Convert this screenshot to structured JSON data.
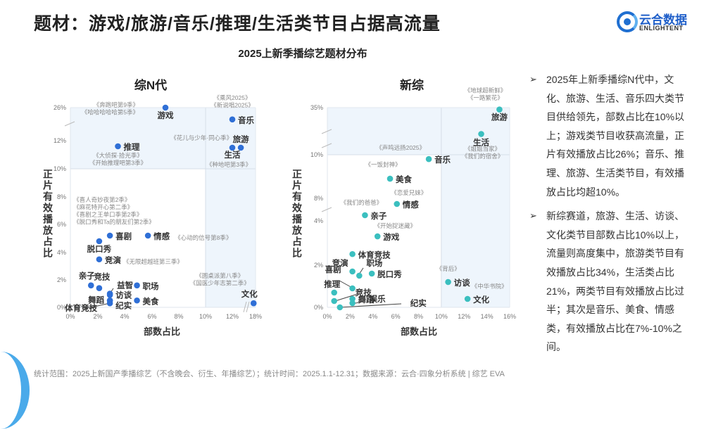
{
  "header": {
    "title": "题材：游戏/旅游/音乐/推理/生活类节目占据高流量"
  },
  "logo": {
    "cn": "云合数据",
    "en": "ENLIGHTENT"
  },
  "subtitle": "2025上新季播综艺题材分布",
  "panel": {
    "bullets": [
      "2025年上新季播综N代中，文化、旅游、生活、音乐四大类节目供给领先，部数占比在10%以上；游戏类节目收获高流量，正片有效播放占比26%；音乐、推理、旅游、生活类节目，有效播放占比均超10%。",
      "新综赛道，旅游、生活、访谈、文化类节目部数占比10%以上，流量则高度集中，旅游类节目有效播放占比34%，生活类占比21%，两类节目有效播放占比过半；其次是音乐、美食、情感类，有效播放占比在7%-10%之间。"
    ],
    "bullet_icon": "arrow-right-icon"
  },
  "footer": "统计范围：2025上新国产季播综艺（不含晚会、衍生、年播综艺）；统计时间：2025.1.1-12.31；数据来源：云合·四象分析系统 | 综艺 EVA",
  "colors": {
    "left_points": "#2f6fd6",
    "right_points": "#3bbfbf",
    "shade": "#eef5fc",
    "accent": "#1f6fd1"
  },
  "chart_data": [
    {
      "type": "scatter",
      "title": "综N代",
      "xlabel": "部数占比",
      "ylabel": "正片有效播放占比",
      "xticks": [
        "0%",
        "2%",
        "4%",
        "6%",
        "8%",
        "10%",
        "12%",
        "18%"
      ],
      "yticks": [
        "0%",
        "2%",
        "4%",
        "6%",
        "8%",
        "10%",
        "12%",
        "26%"
      ],
      "xlim": [
        0,
        18
      ],
      "ylim": [
        0,
        26
      ],
      "axis_breaks": {
        "x": "12%-18%",
        "y": "12%-26%"
      },
      "quadrant_threshold": {
        "x": 10,
        "y": 10
      },
      "points": [
        {
          "label": "游戏",
          "x": 7.0,
          "y": 26,
          "programs": [
            "《奔跑吧第9季》",
            "《哈哈哈哈哈第5季》"
          ]
        },
        {
          "label": "音乐",
          "x": 12.0,
          "y": 21,
          "programs": [
            "《乘风2025》",
            "《新说唱2025》"
          ]
        },
        {
          "label": "推理",
          "x": 3.5,
          "y": 11.6,
          "programs": [
            "《大侦探·拾光季》",
            "《开始推理吧第3季》"
          ]
        },
        {
          "label": "旅游",
          "x": 14.2,
          "y": 11.5,
          "programs": [
            "《花儿与少年·同心季》"
          ]
        },
        {
          "label": "生活",
          "x": 12.0,
          "y": 11.5,
          "programs": [
            "《种地吧第3季》"
          ]
        },
        {
          "label": "喜剧",
          "x": 2.9,
          "y": 5.2,
          "programs": [
            "《喜人奇妙夜第2季》",
            "《麻花特开心第二季》",
            "《喜剧之王单口季第2季》",
            "《脱口秀和Ta的朋友们第2季》"
          ]
        },
        {
          "label": "情感",
          "x": 5.7,
          "y": 5.2,
          "programs": [
            "《心动的信号第8季》"
          ]
        },
        {
          "label": "脱口秀",
          "x": 2.1,
          "y": 4.8,
          "programs": []
        },
        {
          "label": "竞演",
          "x": 2.1,
          "y": 3.5,
          "programs": [
            "《无限超越班第三季》"
          ]
        },
        {
          "label": "亲子",
          "x": 1.5,
          "y": 1.6,
          "programs": []
        },
        {
          "label": "竞技",
          "x": 2.1,
          "y": 1.4,
          "programs": []
        },
        {
          "label": "职场",
          "x": 4.9,
          "y": 1.6,
          "programs": []
        },
        {
          "label": "益智",
          "x": 2.9,
          "y": 1.0,
          "programs": []
        },
        {
          "label": "访谈",
          "x": 2.9,
          "y": 0.9,
          "programs": []
        },
        {
          "label": "舞蹈",
          "x": 2.9,
          "y": 0.5,
          "programs": []
        },
        {
          "label": "纪实",
          "x": 2.9,
          "y": 0.5,
          "programs": []
        },
        {
          "label": "体育竞技",
          "x": 2.9,
          "y": 0.3,
          "programs": []
        },
        {
          "label": "美食",
          "x": 4.9,
          "y": 0.5,
          "programs": []
        },
        {
          "label": "文化",
          "x": 17.5,
          "y": 0.3,
          "programs": [
            "《圆桌派第八季》",
            "《国医少年志第二季》"
          ]
        }
      ]
    },
    {
      "type": "scatter",
      "title": "新综",
      "xlabel": "部数占比",
      "ylabel": "正片有效播放占比",
      "xticks": [
        "0%",
        "2%",
        "4%",
        "6%",
        "8%",
        "10%",
        "12%",
        "14%",
        "16%"
      ],
      "yticks": [
        "0%",
        "2%",
        "4%",
        "8%",
        "10%",
        "35%"
      ],
      "xlim": [
        0,
        16
      ],
      "ylim": [
        0,
        35
      ],
      "axis_breaks": {
        "y": "4%-8%, 10%-35%"
      },
      "quadrant_threshold": {
        "x": 10,
        "y": 10
      },
      "points": [
        {
          "label": "旅游",
          "x": 15.1,
          "y": 34,
          "programs": [
            "《地球超新鲜》",
            "《一路繁花》"
          ]
        },
        {
          "label": "生活",
          "x": 13.5,
          "y": 21,
          "programs": [
            "《姐姐当家》",
            "《我们的宿舍》"
          ]
        },
        {
          "label": "音乐",
          "x": 8.9,
          "y": 9.8,
          "programs": [
            "《声鸣远扬2025》"
          ]
        },
        {
          "label": "美食",
          "x": 5.5,
          "y": 8.9,
          "programs": [
            "《一饭封神》"
          ]
        },
        {
          "label": "情感",
          "x": 6.1,
          "y": 7.0,
          "programs": [
            "《恋爱兄妹》"
          ]
        },
        {
          "label": "亲子",
          "x": 3.3,
          "y": 5.0,
          "programs": [
            "《我们的爸爸》"
          ]
        },
        {
          "label": "游戏",
          "x": 4.4,
          "y": 3.3,
          "programs": [
            "《开始捉迷藏》"
          ]
        },
        {
          "label": "体育竞技",
          "x": 2.2,
          "y": 2.5,
          "programs": []
        },
        {
          "label": "竞演",
          "x": 2.2,
          "y": 1.7,
          "programs": []
        },
        {
          "label": "职场",
          "x": 2.8,
          "y": 1.5,
          "programs": []
        },
        {
          "label": "脱口秀",
          "x": 3.9,
          "y": 1.6,
          "programs": []
        },
        {
          "label": "喜剧",
          "x": 2.2,
          "y": 0.9,
          "programs": []
        },
        {
          "label": "推理",
          "x": 0.6,
          "y": 0.7,
          "programs": []
        },
        {
          "label": "舞蹈",
          "x": 2.2,
          "y": 0.4,
          "programs": []
        },
        {
          "label": "竞技",
          "x": 0.6,
          "y": 0.3,
          "programs": []
        },
        {
          "label": "娱乐",
          "x": 2.2,
          "y": 0.2,
          "programs": []
        },
        {
          "label": "纪实",
          "x": 1.1,
          "y": 0.0,
          "programs": []
        },
        {
          "label": "访谈",
          "x": 10.6,
          "y": 1.2,
          "programs": [
            "《背后》"
          ]
        },
        {
          "label": "文化",
          "x": 12.3,
          "y": 0.4,
          "programs": [
            "《中华书院》"
          ]
        }
      ]
    }
  ]
}
